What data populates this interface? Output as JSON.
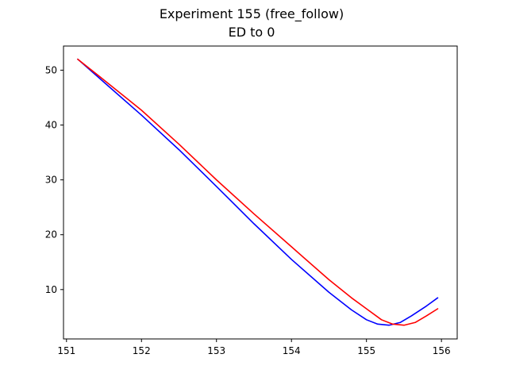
{
  "chart_data": {
    "type": "line",
    "title": "Experiment 155 (free_follow)",
    "subtitle": "ED to 0",
    "xlabel": "",
    "ylabel": "",
    "xlim": [
      150.96,
      156.21
    ],
    "ylim": [
      1.0,
      54.4
    ],
    "xticks": [
      151,
      152,
      153,
      154,
      155,
      156
    ],
    "yticks": [
      10,
      20,
      30,
      40,
      50
    ],
    "grid": false,
    "legend": "none",
    "series": [
      {
        "color": "#0000ff",
        "x": [
          151.15,
          151.5,
          152.0,
          152.5,
          153.0,
          153.5,
          154.0,
          154.5,
          154.8,
          155.0,
          155.15,
          155.3,
          155.45,
          155.6,
          155.8,
          155.95
        ],
        "y": [
          52.0,
          47.8,
          41.8,
          35.5,
          28.8,
          22.0,
          15.5,
          9.5,
          6.3,
          4.5,
          3.7,
          3.5,
          4.0,
          5.2,
          7.0,
          8.5
        ]
      },
      {
        "color": "#ff0000",
        "x": [
          151.15,
          151.5,
          152.0,
          152.5,
          153.0,
          153.5,
          154.0,
          154.5,
          154.8,
          155.0,
          155.2,
          155.35,
          155.5,
          155.65,
          155.8,
          155.95
        ],
        "y": [
          52.0,
          48.2,
          42.7,
          36.5,
          30.0,
          23.8,
          17.8,
          11.8,
          8.5,
          6.5,
          4.5,
          3.7,
          3.5,
          4.0,
          5.2,
          6.5
        ]
      }
    ]
  }
}
